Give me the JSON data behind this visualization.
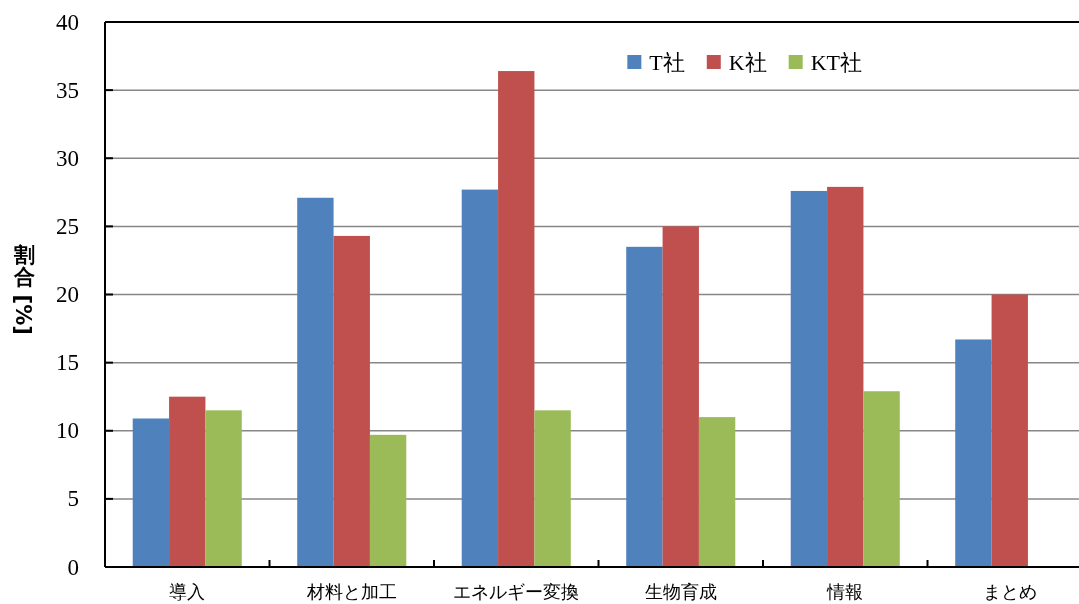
{
  "chart_data": {
    "type": "bar",
    "ylabel": "割合 [%]",
    "categories": [
      "導入",
      "材料と加工",
      "エネルギー変換",
      "生物育成",
      "情報",
      "まとめ"
    ],
    "series": [
      {
        "name": "T社",
        "color": "#4f81bd",
        "values": [
          10.9,
          27.1,
          27.7,
          23.5,
          27.6,
          16.7
        ]
      },
      {
        "name": "K社",
        "color": "#c0504d",
        "values": [
          12.5,
          24.3,
          36.4,
          25.0,
          27.9,
          20.0
        ]
      },
      {
        "name": "KT社",
        "color": "#9bbb59",
        "values": [
          11.5,
          9.7,
          11.5,
          11.0,
          12.9,
          null
        ]
      }
    ],
    "ylim": [
      0,
      40
    ],
    "yticks": [
      0,
      5,
      10,
      15,
      20,
      25,
      30,
      35,
      40
    ],
    "grid": "y",
    "legend": "top right"
  }
}
